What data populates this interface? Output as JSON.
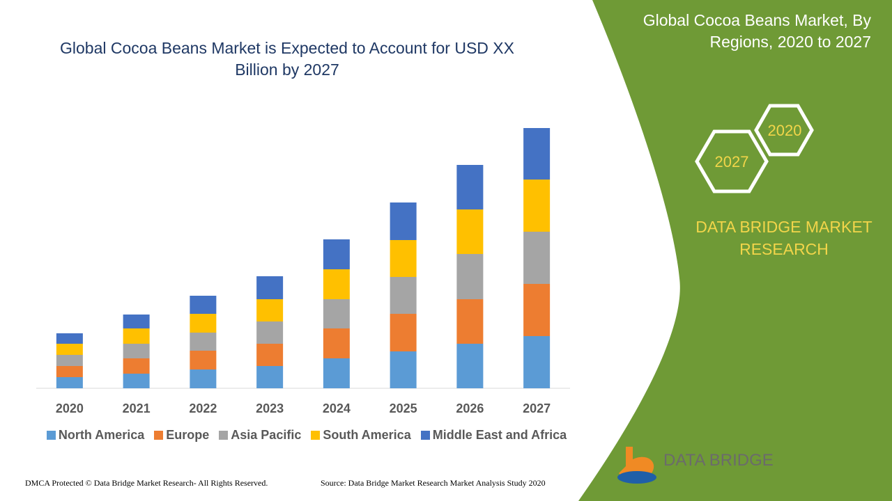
{
  "chart_data": {
    "type": "stacked_bar",
    "title": "Global Cocoa Beans Market is Expected to Account for USD XX Billion by 2027",
    "categories": [
      "2020",
      "2021",
      "2022",
      "2023",
      "2024",
      "2025",
      "2026",
      "2027"
    ],
    "series": [
      {
        "name": "North America",
        "color": "#5b9bd5",
        "values": [
          1.6,
          2.1,
          2.7,
          3.2,
          4.3,
          5.3,
          6.4,
          7.5
        ]
      },
      {
        "name": "Europe",
        "color": "#ed7d31",
        "values": [
          1.6,
          2.2,
          2.7,
          3.2,
          4.3,
          5.4,
          6.4,
          7.5
        ]
      },
      {
        "name": "Asia Pacific",
        "color": "#a5a5a5",
        "values": [
          1.6,
          2.1,
          2.6,
          3.2,
          4.2,
          5.3,
          6.5,
          7.5
        ]
      },
      {
        "name": "South America",
        "color": "#ffc000",
        "values": [
          1.6,
          2.2,
          2.7,
          3.2,
          4.3,
          5.3,
          6.4,
          7.5
        ]
      },
      {
        "name": "Middle East and Africa",
        "color": "#4472c4",
        "values": [
          1.5,
          2.0,
          2.6,
          3.3,
          4.3,
          5.4,
          6.4,
          7.4
        ]
      }
    ]
  },
  "side": {
    "title": "Global Cocoa Beans Market, By Regions, 2020 to 2027",
    "hex_top": "2020",
    "hex_bottom": "2027",
    "brand": "DATA BRIDGE MARKET RESEARCH"
  },
  "logo": {
    "text": "DATA BRIDGE"
  },
  "footer": {
    "dmca": "DMCA Protected © Data Bridge Market Research- All Rights Reserved.",
    "source": "Source: Data Bridge Market Research Market Analysis Study 2020"
  }
}
